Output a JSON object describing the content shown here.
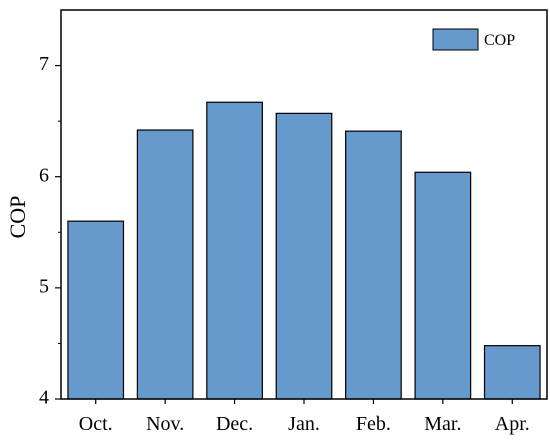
{
  "chart_data": {
    "type": "bar",
    "categories": [
      "Oct.",
      "Nov.",
      "Dec.",
      "Jan.",
      "Feb.",
      "Mar.",
      "Apr."
    ],
    "series": [
      {
        "name": "COP",
        "values": [
          5.6,
          6.42,
          6.67,
          6.57,
          6.41,
          6.04,
          4.48
        ],
        "color": "#6699cc"
      }
    ],
    "title": "",
    "xlabel": "",
    "ylabel": "COP",
    "ylim": [
      4,
      7.5
    ],
    "yticks": [
      4,
      5,
      6,
      7
    ],
    "yticks_labels": [
      "4",
      "5",
      "6",
      "7"
    ],
    "legend": {
      "position": "top-right",
      "entries": [
        "COP"
      ]
    },
    "grid": false,
    "bar_edge_color": "#000000"
  }
}
